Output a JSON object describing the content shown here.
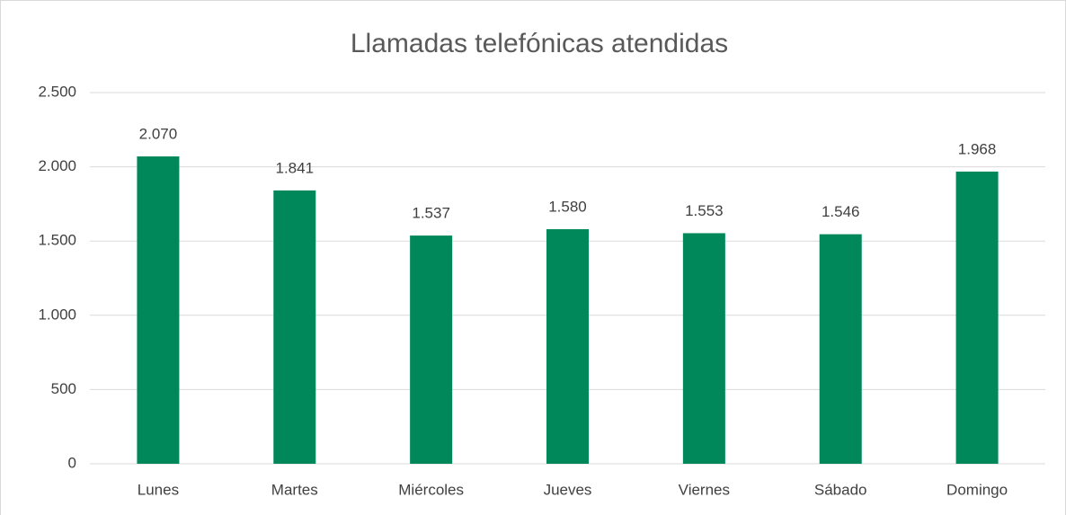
{
  "chart_data": {
    "type": "bar",
    "title": "Llamadas telefónicas atendidas",
    "categories": [
      "Lunes",
      "Martes",
      "Miércoles",
      "Jueves",
      "Viernes",
      "Sábado",
      "Domingo"
    ],
    "values": [
      2070,
      1841,
      1537,
      1580,
      1553,
      1546,
      1968
    ],
    "value_labels": [
      "2.070",
      "1.841",
      "1.537",
      "1.580",
      "1.553",
      "1.546",
      "1.968"
    ],
    "color": "#00875a",
    "ylim": [
      0,
      2500
    ],
    "yticks": [
      0,
      500,
      {
        "value": 1000,
        "label": "1.000"
      },
      {
        "value": 1500,
        "label": "1.500"
      },
      {
        "value": 2000,
        "label": "2.000"
      },
      {
        "value": 2500,
        "label": "2.500"
      }
    ],
    "grid": true
  }
}
